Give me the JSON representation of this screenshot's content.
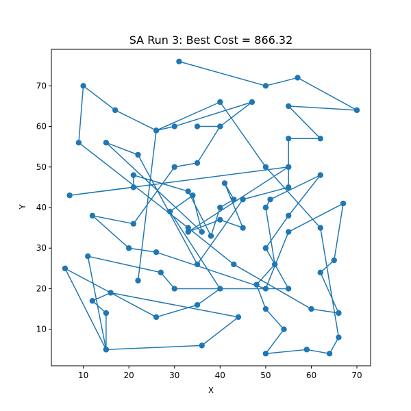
{
  "chart_data": {
    "type": "line",
    "title": "SA Run 3: Best Cost = 866.32",
    "xlabel": "X",
    "ylabel": "Y",
    "xlim": [
      3,
      73
    ],
    "ylim": [
      1,
      79
    ],
    "xticks": [
      10,
      20,
      30,
      40,
      50,
      60,
      70
    ],
    "yticks": [
      10,
      20,
      30,
      40,
      50,
      60,
      70
    ],
    "grid": false,
    "line_color": "#1f77b4",
    "marker": "circle",
    "route": [
      [
        31,
        76
      ],
      [
        50,
        70
      ],
      [
        57,
        72
      ],
      [
        70,
        64
      ],
      [
        55,
        65
      ],
      [
        62,
        57
      ],
      [
        55,
        57
      ],
      [
        55,
        50
      ],
      [
        33,
        34
      ],
      [
        40,
        37
      ],
      [
        45,
        35
      ],
      [
        41,
        46
      ],
      [
        43,
        42
      ],
      [
        40,
        40
      ],
      [
        38,
        33
      ],
      [
        33,
        44
      ],
      [
        21,
        48
      ],
      [
        21,
        45
      ],
      [
        7,
        43
      ],
      [
        55,
        50
      ],
      [
        55,
        45
      ],
      [
        45,
        42
      ],
      [
        35,
        26
      ],
      [
        22,
        53
      ],
      [
        15,
        56
      ],
      [
        36,
        34
      ],
      [
        34,
        43
      ],
      [
        29,
        39
      ],
      [
        40,
        20
      ],
      [
        35,
        16
      ],
      [
        26,
        13
      ],
      [
        6,
        25
      ],
      [
        15,
        5
      ],
      [
        36,
        6
      ],
      [
        44,
        13
      ],
      [
        16,
        19
      ],
      [
        12,
        17
      ],
      [
        15,
        14
      ],
      [
        15,
        5
      ],
      [
        11,
        28
      ],
      [
        27,
        24
      ],
      [
        30,
        20
      ],
      [
        55,
        20
      ],
      [
        50,
        30
      ],
      [
        55,
        38
      ],
      [
        62,
        48
      ],
      [
        51,
        42
      ],
      [
        50,
        40
      ],
      [
        52,
        26
      ],
      [
        48,
        21
      ],
      [
        50,
        15
      ],
      [
        54,
        10
      ],
      [
        50,
        4
      ],
      [
        59,
        5
      ],
      [
        64,
        4
      ],
      [
        66,
        8
      ],
      [
        62,
        35
      ],
      [
        50,
        50
      ],
      [
        40,
        66
      ],
      [
        26,
        59
      ],
      [
        17,
        64
      ],
      [
        10,
        70
      ],
      [
        9,
        56
      ],
      [
        33,
        35
      ],
      [
        43,
        26
      ],
      [
        60,
        15
      ],
      [
        66,
        14
      ],
      [
        62,
        24
      ],
      [
        65,
        27
      ],
      [
        67,
        41
      ],
      [
        55,
        34
      ],
      [
        50,
        20
      ],
      [
        26,
        29
      ],
      [
        20,
        30
      ],
      [
        12,
        38
      ],
      [
        21,
        36
      ],
      [
        30,
        50
      ],
      [
        35,
        51
      ],
      [
        40,
        60
      ],
      [
        35,
        60
      ],
      [
        40,
        60
      ],
      [
        47,
        66
      ],
      [
        30,
        60
      ],
      [
        26,
        59
      ],
      [
        22,
        22
      ]
    ]
  }
}
